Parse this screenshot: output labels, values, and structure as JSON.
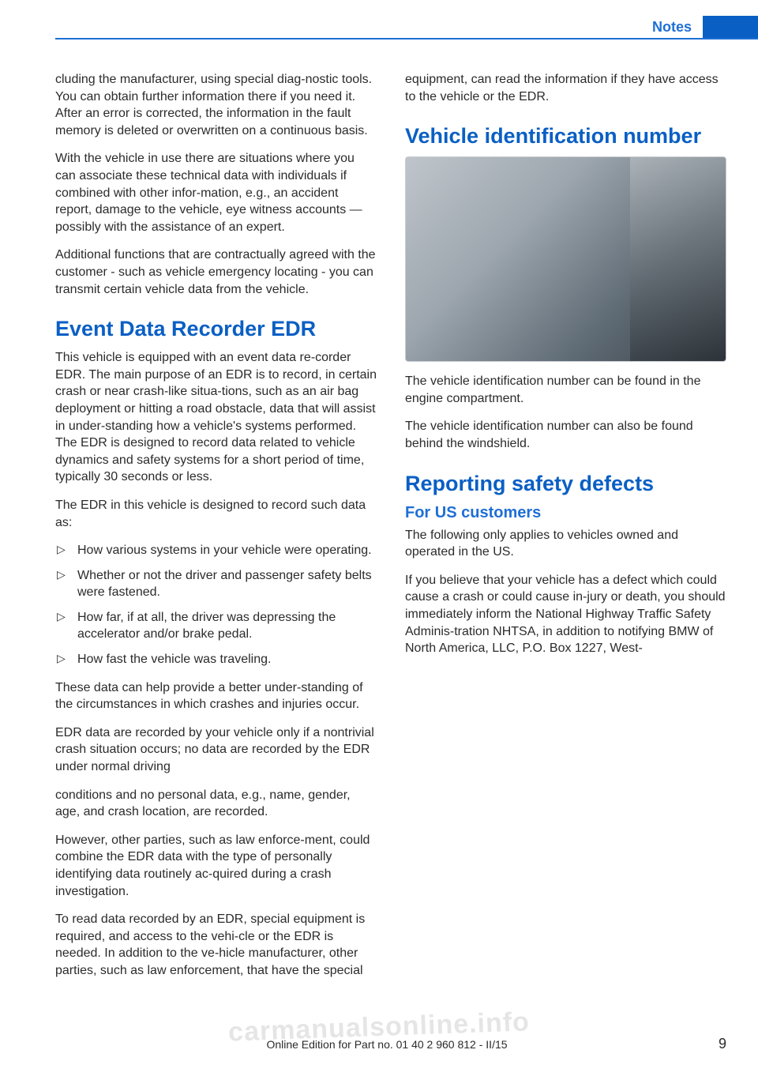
{
  "header": {
    "section": "Notes"
  },
  "colors": {
    "brand": "#0a5fc4",
    "accent": "#1e6fd6",
    "text": "#2b2b2b",
    "rule": "#1e6fd6"
  },
  "col1": {
    "p1": "cluding the manufacturer, using special diag‐nostic tools. You can obtain further information there if you need it. After an error is corrected, the information in the fault memory is deleted or overwritten on a continuous basis.",
    "p2": "With the vehicle in use there are situations where you can associate these technical data with individuals if combined with other infor‐mation, e.g., an accident report, damage to the vehicle, eye witness accounts — possibly with the assistance of an expert.",
    "p3": "Additional functions that are contractually agreed with the customer - such as vehicle emergency locating - you can transmit certain vehicle data from the vehicle.",
    "h1": "Event Data Recorder EDR",
    "p4": "This vehicle is equipped with an event data re‐corder EDR. The main purpose of an EDR is to record, in certain crash or near crash-like situa‐tions, such as an air bag deployment or hitting a road obstacle, data that will assist in under‐standing how a vehicle's systems performed. The EDR is designed to record data related to vehicle dynamics and safety systems for a short period of time, typically 30 seconds or less.",
    "p5": "The EDR in this vehicle is designed to record such data as:",
    "list": [
      "How various systems in your vehicle were operating.",
      "Whether or not the driver and passenger safety belts were fastened.",
      "How far, if at all, the driver was depressing the accelerator and/or brake pedal.",
      "How fast the vehicle was traveling."
    ],
    "p6": "These data can help provide a better under‐standing of the circumstances in which crashes and injuries occur.",
    "p7": "EDR data are recorded by your vehicle only if a nontrivial crash situation occurs; no data are recorded by the EDR under normal driving"
  },
  "col2": {
    "p1": "conditions and no personal data, e.g., name, gender, age, and crash location, are recorded.",
    "p2": "However, other parties, such as law enforce‐ment, could combine the EDR data with the type of personally identifying data routinely ac‐quired during a crash investigation.",
    "p3": "To read data recorded by an EDR, special equipment is required, and access to the vehi‐cle or the EDR is needed. In addition to the ve‐hicle manufacturer, other parties, such as law enforcement, that have the special equipment, can read the information if they have access to the vehicle or the EDR.",
    "h1": "Vehicle identification number",
    "p4": "The vehicle identification number can be found in the engine compartment.",
    "p5": "The vehicle identification number can also be found behind the windshield.",
    "h2": "Reporting safety defects",
    "sub": "For US customers",
    "p6": "The following only applies to vehicles owned and operated in the US.",
    "p7": "If you believe that your vehicle has a defect which could cause a crash or could cause in‐jury or death, you should immediately inform the National Highway Traffic Safety Adminis‐tration NHTSA, in addition to notifying BMW of North America, LLC, P.O. Box 1227, West‐"
  },
  "footer": {
    "line": "Online Edition for Part no. 01 40 2 960 812 - II/15",
    "page": "9"
  },
  "watermark": "carmanualsonline.info",
  "image": {
    "alt": "engine-compartment-vin-location"
  }
}
